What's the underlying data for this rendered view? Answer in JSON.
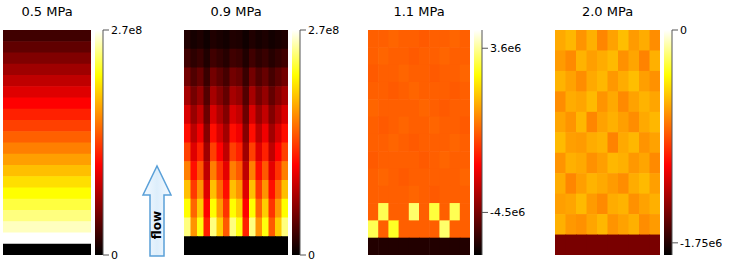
{
  "chart_data": [
    {
      "type": "heatmap",
      "title": "0.5 MPa",
      "color": "hot",
      "tick_labels": false,
      "cells": [
        [
          27000000.0
        ],
        [
          40500000.0
        ],
        [
          54000000.0
        ],
        [
          67500000.0
        ],
        [
          81000000.0
        ],
        [
          94500000.0
        ],
        [
          108000000.0
        ],
        [
          121500000.0
        ],
        [
          135000000.0
        ],
        [
          148500000.0
        ],
        [
          162000000.0
        ],
        [
          175500000.0
        ],
        [
          189000000.0
        ],
        [
          202500000.0
        ],
        [
          216000000.0
        ],
        [
          229500000.0
        ],
        [
          243000000.0
        ],
        [
          256500000.0
        ],
        [
          270000000.0
        ],
        [
          0
        ]
      ],
      "colorbar": {
        "range": [
          0,
          270000000.0
        ],
        "ticks": [
          {
            "value": 270000000.0,
            "label": "2.7e8"
          },
          0
        ]
      }
    },
    {
      "type": "heatmap",
      "title": "0.9 MPa",
      "color": "hot",
      "tick_labels": false,
      "annotation": "flow",
      "cells": [
        [
          13500000.0,
          9500000.0,
          12200000.0,
          6800000.0,
          13500000.0,
          10800000.0,
          8100000.0,
          13500000.0,
          12200000.0,
          6800000.0,
          13500000.0,
          9500000.0,
          12200000.0,
          8100000.0,
          10800000.0,
          13500000.0
        ],
        [
          27000000.0,
          18900000.0,
          24300000.0,
          13500000.0,
          27000000.0,
          21600000.0,
          16200000.0,
          27000000.0,
          24300000.0,
          13500000.0,
          27000000.0,
          18900000.0,
          24300000.0,
          16200000.0,
          21600000.0,
          27000000.0
        ],
        [
          48600000.0,
          34000000.0,
          43700000.0,
          24300000.0,
          48600000.0,
          38900000.0,
          29200000.0,
          48600000.0,
          43700000.0,
          24300000.0,
          48600000.0,
          34000000.0,
          43700000.0,
          29200000.0,
          38900000.0,
          48600000.0
        ],
        [
          70200000.0,
          49100000.0,
          63200000.0,
          35100000.0,
          70200000.0,
          56200000.0,
          42100000.0,
          70200000.0,
          63200000.0,
          35100000.0,
          70200000.0,
          49100000.0,
          63200000.0,
          42100000.0,
          56200000.0,
          70200000.0
        ],
        [
          91800000.0,
          64300000.0,
          82600000.0,
          45900000.0,
          91800000.0,
          73400000.0,
          55100000.0,
          91800000.0,
          82600000.0,
          45900000.0,
          91800000.0,
          64300000.0,
          82600000.0,
          55100000.0,
          73400000.0,
          91800000.0
        ],
        [
          113400000.0,
          79400000.0,
          102100000.0,
          56700000.0,
          113400000.0,
          90700000.0,
          68000000.0,
          113400000.0,
          102100000.0,
          56700000.0,
          113400000.0,
          79400000.0,
          102100000.0,
          68000000.0,
          90700000.0,
          113400000.0
        ],
        [
          135000000.0,
          94500000.0,
          121500000.0,
          67500000.0,
          135000000.0,
          108000000.0,
          81000000.0,
          135000000.0,
          121500000.0,
          67500000.0,
          135000000.0,
          94500000.0,
          121500000.0,
          81000000.0,
          108000000.0,
          135000000.0
        ],
        [
          162000000.0,
          113400000.0,
          145800000.0,
          81000000.0,
          162000000.0,
          129600000.0,
          97200000.0,
          162000000.0,
          145800000.0,
          81000000.0,
          162000000.0,
          113400000.0,
          145800000.0,
          97200000.0,
          129600000.0,
          162000000.0
        ],
        [
          189000000.0,
          132300000.0,
          170100000.0,
          94500000.0,
          189000000.0,
          151200000.0,
          113400000.0,
          189000000.0,
          170100000.0,
          94500000.0,
          189000000.0,
          132300000.0,
          170100000.0,
          113400000.0,
          151200000.0,
          189000000.0
        ],
        [
          216000000.0,
          151200000.0,
          194400000.0,
          108000000.0,
          216000000.0,
          172800000.0,
          129600000.0,
          216000000.0,
          194400000.0,
          108000000.0,
          216000000.0,
          151200000.0,
          194400000.0,
          129600000.0,
          172800000.0,
          216000000.0
        ],
        [
          243000000.0,
          170100000.0,
          218700000.0,
          121500000.0,
          243000000.0,
          194400000.0,
          145800000.0,
          243000000.0,
          218700000.0,
          121500000.0,
          243000000.0,
          170100000.0,
          218700000.0,
          145800000.0,
          194400000.0,
          243000000.0
        ],
        [
          0,
          0,
          0,
          0,
          0,
          0,
          0,
          0,
          0,
          0,
          0,
          0,
          0,
          0,
          0,
          0
        ]
      ],
      "colorbar": {
        "range": [
          0,
          270000000.0
        ],
        "ticks": [
          {
            "value": 270000000.0,
            "label": "2.7e8"
          },
          0
        ]
      }
    },
    {
      "type": "heatmap",
      "title": "1.1 MPa",
      "color": "hot",
      "tick_labels": false,
      "cells": [
        [
          -500000.0,
          -500000.0,
          -400000.0,
          -500000.0,
          -500000.0,
          -600000.0,
          -500000.0,
          -500000.0,
          -400000.0,
          -500000.0
        ],
        [
          -500000.0,
          -400000.0,
          -500000.0,
          -500000.0,
          -600000.0,
          -500000.0,
          -500000.0,
          -400000.0,
          -500000.0,
          -500000.0
        ],
        [
          -600000.0,
          -500000.0,
          -500000.0,
          -400000.0,
          -500000.0,
          -500000.0,
          -600000.0,
          -500000.0,
          -500000.0,
          -400000.0
        ],
        [
          -500000.0,
          -500000.0,
          -600000.0,
          -500000.0,
          -400000.0,
          -500000.0,
          -500000.0,
          -500000.0,
          -600000.0,
          -500000.0
        ],
        [
          -400000.0,
          -500000.0,
          -500000.0,
          -500000.0,
          -500000.0,
          -400000.0,
          -500000.0,
          -600000.0,
          -500000.0,
          -500000.0
        ],
        [
          -500000.0,
          -600000.0,
          -500000.0,
          -400000.0,
          -500000.0,
          -500000.0,
          -400000.0,
          -500000.0,
          -500000.0,
          -600000.0
        ],
        [
          -500000.0,
          -500000.0,
          -400000.0,
          -500000.0,
          -600000.0,
          -500000.0,
          -500000.0,
          -500000.0,
          -400000.0,
          -500000.0
        ],
        [
          -600000.0,
          -500000.0,
          -500000.0,
          -500000.0,
          -500000.0,
          -600000.0,
          -500000.0,
          -400000.0,
          -500000.0,
          -500000.0
        ],
        [
          -500000.0,
          -400000.0,
          -500000.0,
          -600000.0,
          -500000.0,
          -500000.0,
          -500000.0,
          -500000.0,
          -500000.0,
          -400000.0
        ],
        [
          -500000.0,
          -500000.0,
          -500000.0,
          -500000.0,
          -400000.0,
          -500000.0,
          -600000.0,
          -500000.0,
          -500000.0,
          -500000.0
        ],
        [
          -500000.0,
          3000000.0,
          -500000.0,
          -500000.0,
          3200000.0,
          -500000.0,
          2800000.0,
          -500000.0,
          3000000.0,
          -500000.0
        ],
        [
          3000000.0,
          -500000.0,
          2600000.0,
          -500000.0,
          -500000.0,
          -500000.0,
          -500000.0,
          3200000.0,
          -500000.0,
          -500000.0
        ],
        [
          -6000000.0,
          -6000000.0,
          -6000000.0,
          -6000000.0,
          -6000000.0,
          -6000000.0,
          -6000000.0,
          -6000000.0,
          -6000000.0,
          -6000000.0
        ]
      ],
      "colorbar": {
        "range": [
          -6600000.0,
          4500000.0
        ],
        "ticks": [
          {
            "value": 3600000.0,
            "label": "3.6e6"
          },
          {
            "value": -4500000.0,
            "label": "-4.5e6"
          }
        ]
      }
    },
    {
      "type": "heatmap",
      "title": "2.0 MPa",
      "color": "hot",
      "tick_labels": false,
      "cells": [
        [
          -620000.0,
          -580000.0,
          -680000.0,
          -600000.0,
          -720000.0,
          -640000.0,
          -560000.0,
          -660000.0,
          -610000.0,
          -700000.0
        ],
        [
          -660000.0,
          -710000.0,
          -590000.0,
          -650000.0,
          -610000.0,
          -570000.0,
          -690000.0,
          -630000.0,
          -730000.0,
          -600000.0
        ],
        [
          -590000.0,
          -640000.0,
          -700000.0,
          -620000.0,
          -580000.0,
          -670000.0,
          -610000.0,
          -560000.0,
          -650000.0,
          -690000.0
        ],
        [
          -700000.0,
          -610000.0,
          -630000.0,
          -570000.0,
          -680000.0,
          -620000.0,
          -710000.0,
          -640000.0,
          -590000.0,
          -630000.0
        ],
        [
          -630000.0,
          -680000.0,
          -580000.0,
          -720000.0,
          -640000.0,
          -600000.0,
          -650000.0,
          -700000.0,
          -620000.0,
          -580000.0
        ],
        [
          -570000.0,
          -650000.0,
          -660000.0,
          -610000.0,
          -590000.0,
          -730000.0,
          -620000.0,
          -580000.0,
          -680000.0,
          -640000.0
        ],
        [
          -680000.0,
          -600000.0,
          -620000.0,
          -690000.0,
          -650000.0,
          -580000.0,
          -600000.0,
          -670000.0,
          -630000.0,
          -710000.0
        ],
        [
          -610000.0,
          -720000.0,
          -650000.0,
          -590000.0,
          -620000.0,
          -660000.0,
          -700000.0,
          -610000.0,
          -570000.0,
          -650000.0
        ],
        [
          -650000.0,
          -630000.0,
          -570000.0,
          -660000.0,
          -710000.0,
          -610000.0,
          -590000.0,
          -690000.0,
          -640000.0,
          -600000.0
        ],
        [
          -600000.0,
          -670000.0,
          -690000.0,
          -630000.0,
          -580000.0,
          -680000.0,
          -640000.0,
          -600000.0,
          -700000.0,
          -660000.0
        ],
        [
          -1500000.0,
          -1500000.0,
          -1500000.0,
          -1500000.0,
          -1500000.0,
          -1500000.0,
          -1500000.0,
          -1500000.0,
          -1500000.0,
          -1500000.0
        ]
      ],
      "colorbar": {
        "range": [
          -1850000.0,
          0
        ],
        "ticks": [
          0,
          {
            "value": -1750000.0,
            "label": "-1.75e6"
          }
        ]
      }
    }
  ]
}
